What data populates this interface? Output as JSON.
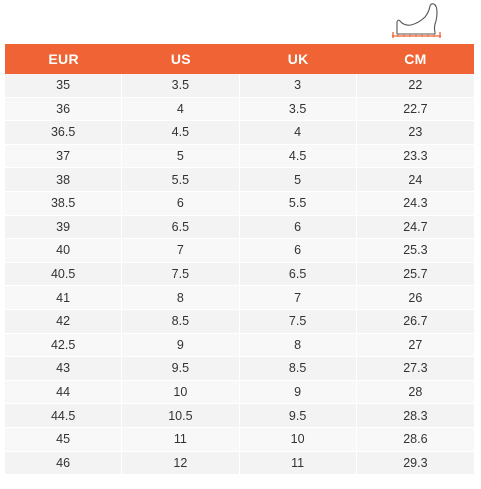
{
  "icon": {
    "name": "foot-measure-icon",
    "color": "#ef6334",
    "outline_color": "#555555"
  },
  "accent_color": "#ef6334",
  "table": {
    "headers": [
      "EUR",
      "US",
      "UK",
      "CM"
    ],
    "rows": [
      [
        "35",
        "3.5",
        "3",
        "22"
      ],
      [
        "36",
        "4",
        "3.5",
        "22.7"
      ],
      [
        "36.5",
        "4.5",
        "4",
        "23"
      ],
      [
        "37",
        "5",
        "4.5",
        "23.3"
      ],
      [
        "38",
        "5.5",
        "5",
        "24"
      ],
      [
        "38.5",
        "6",
        "5.5",
        "24.3"
      ],
      [
        "39",
        "6.5",
        "6",
        "24.7"
      ],
      [
        "40",
        "7",
        "6",
        "25.3"
      ],
      [
        "40.5",
        "7.5",
        "6.5",
        "25.7"
      ],
      [
        "41",
        "8",
        "7",
        "26"
      ],
      [
        "42",
        "8.5",
        "7.5",
        "26.7"
      ],
      [
        "42.5",
        "9",
        "8",
        "27"
      ],
      [
        "43",
        "9.5",
        "8.5",
        "27.3"
      ],
      [
        "44",
        "10",
        "9",
        "28"
      ],
      [
        "44.5",
        "10.5",
        "9.5",
        "28.3"
      ],
      [
        "45",
        "11",
        "10",
        "28.6"
      ],
      [
        "46",
        "12",
        "11",
        "29.3"
      ]
    ]
  }
}
